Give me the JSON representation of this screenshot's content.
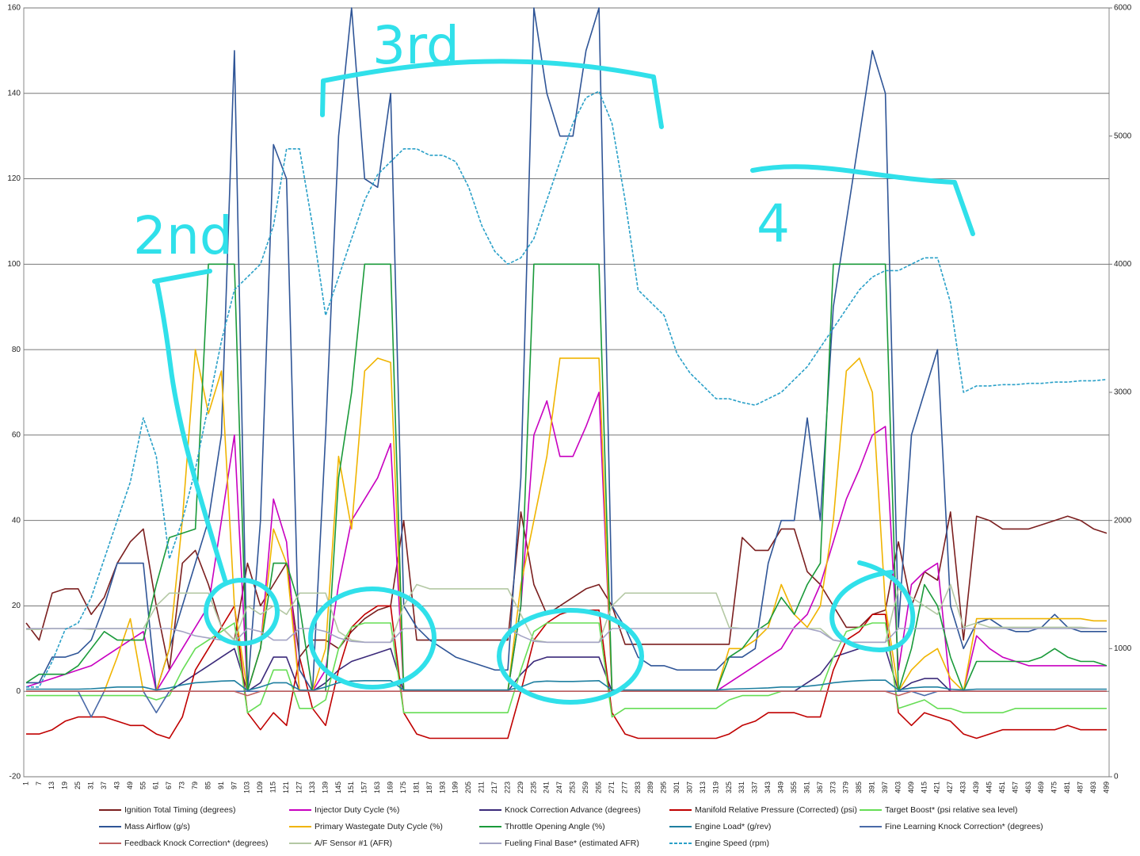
{
  "chart_data": {
    "type": "line",
    "categories": [
      1,
      7,
      13,
      19,
      25,
      31,
      37,
      43,
      49,
      55,
      61,
      67,
      73,
      79,
      85,
      91,
      97,
      103,
      109,
      115,
      121,
      127,
      133,
      139,
      145,
      151,
      157,
      163,
      169,
      175,
      181,
      187,
      193,
      199,
      205,
      211,
      217,
      223,
      229,
      235,
      241,
      247,
      253,
      259,
      265,
      271,
      277,
      283,
      289,
      295,
      301,
      307,
      313,
      319,
      325,
      331,
      337,
      343,
      349,
      355,
      361,
      367,
      373,
      379,
      385,
      391,
      397,
      403,
      409,
      415,
      421,
      427,
      433,
      439,
      445,
      451,
      457,
      463,
      469,
      475,
      481,
      487,
      493,
      499
    ],
    "ylim": [
      -20,
      160
    ],
    "yticks": [
      -20,
      0,
      20,
      40,
      60,
      80,
      100,
      120,
      140,
      160
    ],
    "y2lim": [
      0,
      6000
    ],
    "y2ticks": [
      0,
      1000,
      2000,
      3000,
      4000,
      5000,
      6000
    ],
    "grid": true,
    "annotations": [
      "2nd",
      "3rd",
      "4"
    ],
    "series": [
      {
        "name": "Ignition Total Timing (degrees)",
        "color": "#7b1f1f",
        "values": [
          16,
          12,
          23,
          24,
          24,
          18,
          22,
          30,
          35,
          38,
          20,
          5,
          30,
          33,
          25,
          15,
          12,
          30,
          20,
          25,
          30,
          8,
          12,
          12,
          10,
          14,
          17,
          19,
          20,
          40,
          12,
          12,
          12,
          12,
          12,
          12,
          12,
          12,
          42,
          25,
          18,
          20,
          22,
          24,
          25,
          20,
          11,
          11,
          11,
          11,
          11,
          11,
          11,
          11,
          11,
          36,
          33,
          33,
          38,
          38,
          28,
          25,
          20,
          15,
          15,
          18,
          19,
          35,
          20,
          28,
          26,
          42,
          12,
          41,
          40,
          38,
          38,
          38,
          39,
          40,
          41,
          40,
          38,
          37
        ]
      },
      {
        "name": "Injector Duty Cycle (%)",
        "color": "#c800c0",
        "values": [
          1,
          2,
          3,
          4,
          5,
          6,
          8,
          10,
          12,
          14,
          0,
          5,
          10,
          15,
          20,
          40,
          60,
          0,
          10,
          45,
          35,
          0,
          0,
          5,
          25,
          40,
          45,
          50,
          58,
          0,
          0,
          0,
          0,
          0,
          0,
          0,
          0,
          0,
          20,
          60,
          68,
          55,
          55,
          62,
          70,
          0,
          0,
          0,
          0,
          0,
          0,
          0,
          0,
          0,
          2,
          4,
          6,
          8,
          10,
          15,
          18,
          25,
          35,
          45,
          52,
          60,
          62,
          5,
          25,
          28,
          30,
          0,
          0,
          13,
          10,
          8,
          7,
          6,
          6,
          6,
          6,
          6,
          6,
          6
        ]
      },
      {
        "name": "Knock Correction Advance (degrees)",
        "color": "#3b2a7a",
        "values": [
          0,
          0,
          0,
          0,
          0,
          0,
          0,
          0,
          0,
          0,
          0,
          0,
          2,
          4,
          6,
          8,
          10,
          0,
          2,
          8,
          8,
          0,
          0,
          2,
          5,
          7,
          8,
          9,
          10,
          0,
          0,
          0,
          0,
          0,
          0,
          0,
          0,
          0,
          4,
          7,
          8,
          8,
          8,
          8,
          8,
          0,
          0,
          0,
          0,
          0,
          0,
          0,
          0,
          0,
          0,
          0,
          0,
          0,
          0,
          0,
          2,
          4,
          8,
          9,
          10,
          10,
          10,
          0,
          2,
          3,
          3,
          0,
          0,
          0,
          0,
          0,
          0,
          0,
          0,
          0,
          0,
          0,
          0,
          0
        ]
      },
      {
        "name": "Manifold Relative Pressure (Corrected) (psi)",
        "color": "#c00000",
        "values": [
          -10,
          -10,
          -9,
          -7,
          -6,
          -6,
          -6,
          -7,
          -8,
          -8,
          -10,
          -11,
          -6,
          5,
          10,
          15,
          20,
          -5,
          -9,
          -5,
          -8,
          8,
          -4,
          -8,
          5,
          15,
          18,
          20,
          20,
          -5,
          -10,
          -11,
          -11,
          -11,
          -11,
          -11,
          -11,
          -11,
          0,
          12,
          16,
          18,
          19,
          19,
          19,
          -5,
          -10,
          -11,
          -11,
          -11,
          -11,
          -11,
          -11,
          -11,
          -10,
          -8,
          -7,
          -5,
          -5,
          -5,
          -6,
          -6,
          5,
          12,
          14,
          18,
          18,
          -5,
          -8,
          -5,
          -6,
          -7,
          -10,
          -11,
          -10,
          -9,
          -9,
          -9,
          -9,
          -9,
          -8,
          -9,
          -9,
          -9
        ]
      },
      {
        "name": "Target Boost* (psi relative sea level)",
        "color": "#66dd55",
        "values": [
          -1,
          -1,
          -1,
          -1,
          -1,
          -1,
          -1,
          -1,
          -1,
          -1,
          -2,
          -1,
          5,
          10,
          12,
          14,
          16,
          -5,
          -3,
          5,
          5,
          -4,
          -4,
          -2,
          10,
          15,
          16,
          16,
          16,
          -5,
          -5,
          -5,
          -5,
          -5,
          -5,
          -5,
          -5,
          -5,
          5,
          14,
          16,
          16,
          16,
          16,
          16,
          -6,
          -4,
          -4,
          -4,
          -4,
          -4,
          -4,
          -4,
          -4,
          -2,
          -1,
          -1,
          -1,
          0,
          0,
          0,
          0,
          8,
          14,
          15,
          16,
          16,
          -4,
          -3,
          -2,
          -4,
          -4,
          -5,
          -5,
          -5,
          -5,
          -4,
          -4,
          -4,
          -4,
          -4,
          -4,
          -4,
          -4
        ]
      },
      {
        "name": "Mass Airflow (g/s)",
        "color": "#2f5597",
        "values": [
          2,
          2,
          8,
          8,
          9,
          12,
          20,
          30,
          30,
          30,
          0,
          10,
          20,
          30,
          40,
          60,
          150,
          0,
          40,
          128,
          120,
          5,
          0,
          60,
          130,
          160,
          120,
          118,
          140,
          20,
          15,
          12,
          10,
          8,
          7,
          6,
          5,
          5,
          50,
          160,
          140,
          130,
          130,
          150,
          160,
          20,
          15,
          8,
          6,
          6,
          5,
          5,
          5,
          5,
          8,
          8,
          10,
          30,
          40,
          40,
          64,
          40,
          90,
          110,
          130,
          150,
          140,
          15,
          60,
          70,
          80,
          20,
          10,
          16,
          17,
          15,
          14,
          14,
          15,
          18,
          15,
          14,
          14,
          14
        ]
      },
      {
        "name": "Primary Wastegate Duty Cycle (%)",
        "color": "#f0b400",
        "values": [
          0,
          0,
          0,
          0,
          0,
          0,
          0,
          8,
          17,
          0,
          0,
          10,
          40,
          80,
          65,
          75,
          20,
          0,
          10,
          38,
          30,
          0,
          0,
          10,
          55,
          38,
          75,
          78,
          77,
          0,
          0,
          0,
          0,
          0,
          0,
          0,
          0,
          0,
          25,
          40,
          55,
          78,
          78,
          78,
          78,
          0,
          0,
          0,
          0,
          0,
          0,
          0,
          0,
          0,
          10,
          10,
          12,
          15,
          25,
          18,
          15,
          20,
          40,
          75,
          78,
          70,
          20,
          0,
          5,
          8,
          10,
          3,
          0,
          17,
          17,
          17,
          17,
          17,
          17,
          17,
          17,
          17,
          16.5,
          16.5
        ]
      },
      {
        "name": "Throttle Opening Angle (%)",
        "color": "#1a9a3a",
        "values": [
          2,
          4,
          4,
          4,
          6,
          10,
          14,
          12,
          12,
          12,
          25,
          36,
          37,
          38,
          100,
          100,
          100,
          0,
          10,
          30,
          30,
          20,
          0,
          0,
          50,
          70,
          100,
          100,
          100,
          0,
          0,
          0,
          0,
          0,
          0,
          0,
          0,
          0,
          20,
          100,
          100,
          100,
          100,
          100,
          100,
          0,
          0,
          0,
          0,
          0,
          0,
          0,
          0,
          0,
          8,
          10,
          14,
          16,
          22,
          18,
          25,
          30,
          100,
          100,
          100,
          100,
          100,
          0,
          10,
          25,
          20,
          8,
          0,
          7,
          7,
          7,
          7,
          7,
          8,
          10,
          8,
          7,
          7,
          6
        ]
      },
      {
        "name": "Engine Load* (g/rev)",
        "color": "#1f7fa0",
        "values": [
          0.5,
          0.5,
          0.5,
          0.5,
          0.5,
          0.6,
          0.8,
          1,
          1,
          1,
          0.3,
          0.8,
          1.5,
          2,
          2.2,
          2.4,
          2.5,
          0.2,
          1,
          2,
          2,
          0.3,
          0.2,
          1,
          2,
          2.4,
          2.5,
          2.5,
          2.5,
          0.3,
          0.3,
          0.3,
          0.3,
          0.3,
          0.3,
          0.3,
          0.3,
          0.3,
          1,
          2.2,
          2.4,
          2.3,
          2.3,
          2.4,
          2.5,
          0.3,
          0.3,
          0.3,
          0.3,
          0.3,
          0.3,
          0.3,
          0.3,
          0.3,
          0.5,
          0.6,
          0.7,
          0.8,
          1,
          1,
          1.2,
          1.5,
          2,
          2.3,
          2.5,
          2.6,
          2.6,
          0.3,
          0.8,
          1,
          1,
          0.5,
          0.3,
          0.5,
          0.5,
          0.5,
          0.5,
          0.5,
          0.5,
          0.5,
          0.5,
          0.5,
          0.5,
          0.5
        ]
      },
      {
        "name": "Fine Learning Knock Correction* (degrees)",
        "color": "#4a6aa8",
        "values": [
          0,
          0,
          0,
          0,
          0,
          -6,
          0,
          0,
          0,
          0,
          -5,
          0,
          0,
          0,
          0,
          0,
          0,
          0,
          0,
          0,
          0,
          0,
          0,
          0,
          0,
          0,
          0,
          0,
          0,
          0,
          0,
          0,
          0,
          0,
          0,
          0,
          0,
          0,
          0,
          0,
          0,
          0,
          0,
          0,
          0,
          0,
          0,
          0,
          0,
          0,
          0,
          0,
          0,
          0,
          0,
          0,
          0,
          0,
          0,
          0,
          0,
          0,
          0,
          0,
          0,
          0,
          0,
          0,
          0,
          -1,
          0,
          0,
          0,
          0,
          0,
          0,
          0,
          0,
          0,
          0,
          0,
          0,
          0,
          0
        ]
      },
      {
        "name": "Feedback Knock Correction* (degrees)",
        "color": "#c06060",
        "values": [
          0,
          0,
          0,
          0,
          0,
          0,
          0,
          0,
          0,
          0,
          0,
          0,
          0,
          0,
          0,
          0,
          0,
          -1,
          0,
          0,
          0,
          0,
          0,
          0,
          0,
          0,
          0,
          0,
          0,
          0,
          0,
          0,
          0,
          0,
          0,
          0,
          0,
          0,
          0,
          0,
          0,
          0,
          0,
          0,
          0,
          0,
          0,
          0,
          0,
          0,
          0,
          0,
          0,
          0,
          0,
          0,
          0,
          0,
          0,
          0,
          0,
          0,
          0,
          0,
          0,
          0,
          0,
          -1,
          0,
          0,
          0,
          0,
          0,
          0,
          0,
          0,
          0,
          0,
          0,
          0,
          0,
          0,
          0,
          0
        ]
      },
      {
        "name": "A/F Sensor #1 (AFR)",
        "color": "#b4c8a4",
        "values": [
          14.5,
          14.5,
          14.7,
          14.7,
          14.7,
          14.5,
          14.7,
          14.7,
          14.7,
          14.7,
          20,
          23,
          23,
          23,
          23,
          15,
          12,
          20,
          18,
          20,
          18,
          23,
          23,
          23,
          14,
          12,
          11.5,
          11.5,
          11.5,
          20,
          25,
          24,
          24,
          24,
          24,
          24,
          24,
          24,
          18,
          12,
          11.5,
          11.5,
          11.5,
          11.5,
          11.5,
          20,
          23,
          23,
          23,
          23,
          23,
          23,
          23,
          23,
          15,
          14.7,
          14.7,
          14.7,
          14.7,
          14.7,
          14.7,
          14.7,
          12,
          11.5,
          11.5,
          11.5,
          11.5,
          24,
          22,
          20,
          18,
          25,
          15,
          16,
          15,
          15,
          15,
          15,
          15,
          15,
          15,
          15,
          14.7,
          14.7
        ]
      },
      {
        "name": "Fueling Final Base* (estimated AFR)",
        "color": "#a4a4c4",
        "values": [
          14.7,
          14.7,
          14.7,
          14.7,
          14.7,
          14.7,
          14.7,
          14.7,
          14.7,
          14.7,
          14.7,
          14.7,
          14,
          13,
          12.5,
          12,
          11.5,
          14.7,
          14,
          12,
          12,
          14.7,
          14.7,
          14,
          12.5,
          11.7,
          11.5,
          11.5,
          11.5,
          14.7,
          14.7,
          14.7,
          14.7,
          14.7,
          14.7,
          14.7,
          14.7,
          14.7,
          13,
          11.7,
          11.5,
          11.5,
          11.5,
          11.5,
          11.5,
          14.7,
          14.7,
          14.7,
          14.7,
          14.7,
          14.7,
          14.7,
          14.7,
          14.7,
          14.7,
          14.7,
          14.7,
          14.7,
          14.7,
          14.7,
          14.7,
          14,
          12,
          11.5,
          11.5,
          11.5,
          11.5,
          14.7,
          14.7,
          14.7,
          14.7,
          14.7,
          14.7,
          14.7,
          14.7,
          14.7,
          14.7,
          14.7,
          14.7,
          14.7,
          14.7,
          14.7,
          14.7,
          14.7
        ]
      },
      {
        "name": "Engine Speed (rpm)",
        "color": "#2aa0c8",
        "axis": "y2",
        "line_style": "dashed",
        "values": [
          700,
          700,
          900,
          1150,
          1200,
          1400,
          1700,
          2000,
          2300,
          2800,
          2500,
          1700,
          2000,
          2400,
          2900,
          3400,
          3800,
          3900,
          4000,
          4300,
          4900,
          4900,
          4300,
          3600,
          3900,
          4200,
          4500,
          4700,
          4800,
          4900,
          4900,
          4850,
          4850,
          4800,
          4600,
          4300,
          4100,
          4000,
          4050,
          4200,
          4500,
          4800,
          5100,
          5300,
          5350,
          5100,
          4500,
          3800,
          3700,
          3600,
          3300,
          3150,
          3050,
          2950,
          2950,
          2920,
          2900,
          2950,
          3000,
          3100,
          3200,
          3350,
          3500,
          3650,
          3800,
          3900,
          3950,
          3950,
          4000,
          4050,
          4050,
          3700,
          3000,
          3050,
          3050,
          3060,
          3060,
          3070,
          3070,
          3080,
          3080,
          3090,
          3090,
          3100
        ]
      }
    ]
  }
}
